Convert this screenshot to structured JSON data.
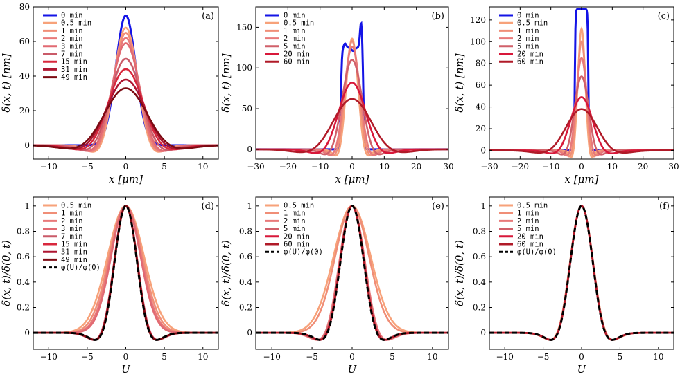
{
  "colors": {
    "0 min": "#1414e6",
    "0.5 min": "#f7a27a",
    "1 min": "#f08e77",
    "2 min": "#e8797a",
    "3 min": "#e16a72",
    "5 min": "#d0606a",
    "7 min": "#c95a68",
    "15 min": "#d8283d",
    "20 min": "#d8183a",
    "31 min": "#ad1530",
    "49 min": "#7c0a12",
    "60 min": "#b01a28",
    "phi": "#000000"
  },
  "chart_data": [
    {
      "panel": "(a)",
      "type": "line",
      "xlabel": "x  [μm]",
      "ylabel": "δ(x, t)  [nm]",
      "xlim": [
        -12,
        12
      ],
      "ylim": [
        -8,
        80
      ],
      "xticks": [
        -10,
        -5,
        0,
        5,
        10
      ],
      "yticks": [
        0,
        20,
        40,
        60,
        80
      ],
      "xtick_labels": [
        "−10",
        "−5",
        "0",
        "5",
        "10"
      ],
      "ytick_labels": [
        "0",
        "20",
        "40",
        "60",
        "80"
      ],
      "legend": [
        "0 min",
        "0.5 min",
        "1 min",
        "2 min",
        "3 min",
        "7 min",
        "15 min",
        "31 min",
        "49 min"
      ],
      "series": [
        {
          "name": "0 min",
          "kind": "gauss",
          "peak": 75,
          "width": 1.3
        },
        {
          "name": "0.5 min",
          "kind": "damped",
          "peak": 68,
          "width": 2.0
        },
        {
          "name": "1 min",
          "kind": "damped",
          "peak": 65,
          "width": 2.1
        },
        {
          "name": "2 min",
          "kind": "damped",
          "peak": 62,
          "width": 2.2
        },
        {
          "name": "3 min",
          "kind": "damped",
          "peak": 59,
          "width": 2.35
        },
        {
          "name": "7 min",
          "kind": "damped",
          "peak": 50,
          "width": 2.6
        },
        {
          "name": "15 min",
          "kind": "damped",
          "peak": 44,
          "width": 2.9
        },
        {
          "name": "31 min",
          "kind": "damped",
          "peak": 38,
          "width": 3.2
        },
        {
          "name": "49 min",
          "kind": "damped",
          "peak": 33,
          "width": 3.5
        }
      ]
    },
    {
      "panel": "(b)",
      "type": "line",
      "xlabel": "x  [μm]",
      "ylabel": "δ(x, t)  [nm]",
      "xlim": [
        -30,
        30
      ],
      "ylim": [
        -12,
        175
      ],
      "xticks": [
        -30,
        -20,
        -10,
        0,
        10,
        20,
        30
      ],
      "yticks": [
        0,
        50,
        100,
        150
      ],
      "xtick_labels": [
        "−30",
        "−20",
        "−10",
        "0",
        "10",
        "20",
        "30"
      ],
      "ytick_labels": [
        "0",
        "50",
        "100",
        "150"
      ],
      "legend": [
        "0 min",
        "0.5 min",
        "1 min",
        "2 min",
        "5 min",
        "20 min",
        "60 min"
      ],
      "series": [
        {
          "name": "0 min",
          "kind": "double_peak",
          "peak": 125
        },
        {
          "name": "0.5 min",
          "kind": "damped",
          "peak": 136,
          "width": 2.4
        },
        {
          "name": "1 min",
          "kind": "damped",
          "peak": 133,
          "width": 2.8
        },
        {
          "name": "2 min",
          "kind": "damped",
          "peak": 126,
          "width": 3.2
        },
        {
          "name": "5 min",
          "kind": "damped",
          "peak": 110,
          "width": 4.0
        },
        {
          "name": "20 min",
          "kind": "damped",
          "peak": 82,
          "width": 5.4
        },
        {
          "name": "60 min",
          "kind": "damped",
          "peak": 62,
          "width": 7.5
        }
      ]
    },
    {
      "panel": "(c)",
      "type": "line",
      "xlabel": "x  [μm]",
      "ylabel": "δ(x, t)  [nm]",
      "xlim": [
        -30,
        30
      ],
      "ylim": [
        -8,
        132
      ],
      "xticks": [
        -30,
        -20,
        -10,
        0,
        10,
        20,
        30
      ],
      "yticks": [
        0,
        20,
        40,
        60,
        80,
        100,
        120
      ],
      "xtick_labels": [
        "−30",
        "−20",
        "−10",
        "0",
        "10",
        "20",
        "30"
      ],
      "ytick_labels": [
        "0",
        "20",
        "40",
        "60",
        "80",
        "100",
        "120"
      ],
      "legend": [
        "0 min",
        "0.5 min",
        "1 min",
        "2 min",
        "5 min",
        "20 min",
        "60 min"
      ],
      "series": [
        {
          "name": "0 min",
          "kind": "plateau",
          "peak": 130
        },
        {
          "name": "0.5 min",
          "kind": "damped",
          "peak": 112,
          "width": 1.6
        },
        {
          "name": "1 min",
          "kind": "damped",
          "peak": 100,
          "width": 1.9
        },
        {
          "name": "2 min",
          "kind": "damped",
          "peak": 85,
          "width": 2.3
        },
        {
          "name": "5 min",
          "kind": "damped",
          "peak": 68,
          "width": 3.0
        },
        {
          "name": "20 min",
          "kind": "damped",
          "peak": 49,
          "width": 4.6
        },
        {
          "name": "60 min",
          "kind": "damped",
          "peak": 38,
          "width": 6.5
        }
      ]
    },
    {
      "panel": "(d)",
      "type": "line",
      "xlabel": "U",
      "ylabel": "δ(x, t)/δ(0, t)",
      "xlim": [
        -12,
        12
      ],
      "ylim": [
        -0.13,
        1.07
      ],
      "xticks": [
        -10,
        -5,
        0,
        5,
        10
      ],
      "yticks": [
        0,
        0.2,
        0.4,
        0.6,
        0.8,
        1
      ],
      "xtick_labels": [
        "−10",
        "−5",
        "0",
        "5",
        "10"
      ],
      "ytick_labels": [
        "0",
        "0.2",
        "0.4",
        "0.6",
        "0.8",
        "1"
      ],
      "legend": [
        "0.5 min",
        "1 min",
        "2 min",
        "3 min",
        "7 min",
        "15 min",
        "31 min",
        "49 min",
        "φ(U)/φ(0)"
      ],
      "series": [
        {
          "name": "0.5 min",
          "kind": "gauss",
          "peak": 1,
          "width": 2.35
        },
        {
          "name": "1 min",
          "kind": "gauss",
          "peak": 1,
          "width": 2.15
        },
        {
          "name": "2 min",
          "kind": "gauss",
          "peak": 1,
          "width": 2.0
        },
        {
          "name": "3 min",
          "kind": "gauss",
          "peak": 1,
          "width": 1.9
        },
        {
          "name": "7 min",
          "kind": "damped",
          "peak": 1,
          "width": 1.95
        },
        {
          "name": "15 min",
          "kind": "damped",
          "peak": 1,
          "width": 1.92
        },
        {
          "name": "31 min",
          "kind": "damped",
          "peak": 1,
          "width": 1.9
        },
        {
          "name": "49 min",
          "kind": "damped",
          "peak": 1,
          "width": 1.88
        },
        {
          "name": "φ(U)/φ(0)",
          "kind": "phi",
          "peak": 1,
          "width": 1.87
        }
      ]
    },
    {
      "panel": "(e)",
      "type": "line",
      "xlabel": "U",
      "ylabel": "δ(x, t)/δ(0, t)",
      "xlim": [
        -12,
        12
      ],
      "ylim": [
        -0.13,
        1.07
      ],
      "xticks": [
        -10,
        -5,
        0,
        5,
        10
      ],
      "yticks": [
        0,
        0.2,
        0.4,
        0.6,
        0.8,
        1
      ],
      "xtick_labels": [
        "−10",
        "−5",
        "0",
        "5",
        "10"
      ],
      "ytick_labels": [
        "0",
        "0.2",
        "0.4",
        "0.6",
        "0.8",
        "1"
      ],
      "legend": [
        "0.5 min",
        "1 min",
        "2 min",
        "5 min",
        "20 min",
        "60 min",
        "φ(U)/φ(0)"
      ],
      "series": [
        {
          "name": "0.5 min",
          "kind": "gauss",
          "peak": 1,
          "width": 2.3
        },
        {
          "name": "1 min",
          "kind": "gauss",
          "peak": 1,
          "width": 2.1
        },
        {
          "name": "2 min",
          "kind": "damped",
          "peak": 1,
          "width": 2.05
        },
        {
          "name": "5 min",
          "kind": "damped",
          "peak": 1,
          "width": 1.97
        },
        {
          "name": "20 min",
          "kind": "damped",
          "peak": 1,
          "width": 1.91
        },
        {
          "name": "60 min",
          "kind": "damped",
          "peak": 1,
          "width": 1.89
        },
        {
          "name": "φ(U)/φ(0)",
          "kind": "phi",
          "peak": 1,
          "width": 1.87
        }
      ]
    },
    {
      "panel": "(f)",
      "type": "line",
      "xlabel": "U",
      "ylabel": "δ(x, t)/δ(0, t)",
      "xlim": [
        -12,
        12
      ],
      "ylim": [
        -0.13,
        1.07
      ],
      "xticks": [
        -10,
        -5,
        0,
        5,
        10
      ],
      "yticks": [
        0,
        0.2,
        0.4,
        0.6,
        0.8,
        1
      ],
      "xtick_labels": [
        "−10",
        "−5",
        "0",
        "5",
        "10"
      ],
      "ytick_labels": [
        "0",
        "0.2",
        "0.4",
        "0.6",
        "0.8",
        "1"
      ],
      "legend": [
        "0.5 min",
        "1 min",
        "2 min",
        "5 min",
        "20 min",
        "60 min",
        "φ(U)/φ(0)"
      ],
      "series": [
        {
          "name": "0.5 min",
          "kind": "damped",
          "peak": 1,
          "width": 1.93
        },
        {
          "name": "1 min",
          "kind": "damped",
          "peak": 1,
          "width": 1.91
        },
        {
          "name": "2 min",
          "kind": "damped",
          "peak": 1,
          "width": 1.9
        },
        {
          "name": "5 min",
          "kind": "damped",
          "peak": 1,
          "width": 1.89
        },
        {
          "name": "20 min",
          "kind": "damped",
          "peak": 1,
          "width": 1.88
        },
        {
          "name": "60 min",
          "kind": "damped",
          "peak": 1,
          "width": 1.87
        },
        {
          "name": "φ(U)/φ(0)",
          "kind": "phi",
          "peak": 1,
          "width": 1.87
        }
      ]
    }
  ]
}
